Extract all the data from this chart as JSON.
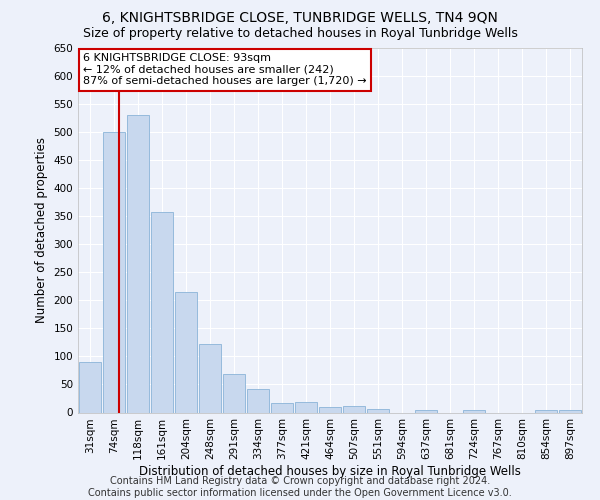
{
  "title": "6, KNIGHTSBRIDGE CLOSE, TUNBRIDGE WELLS, TN4 9QN",
  "subtitle": "Size of property relative to detached houses in Royal Tunbridge Wells",
  "xlabel": "Distribution of detached houses by size in Royal Tunbridge Wells",
  "ylabel": "Number of detached properties",
  "footer_line1": "Contains HM Land Registry data © Crown copyright and database right 2024.",
  "footer_line2": "Contains public sector information licensed under the Open Government Licence v3.0.",
  "bin_labels": [
    "31sqm",
    "74sqm",
    "118sqm",
    "161sqm",
    "204sqm",
    "248sqm",
    "291sqm",
    "334sqm",
    "377sqm",
    "421sqm",
    "464sqm",
    "507sqm",
    "551sqm",
    "594sqm",
    "637sqm",
    "681sqm",
    "724sqm",
    "767sqm",
    "810sqm",
    "854sqm",
    "897sqm"
  ],
  "bar_values": [
    90,
    500,
    530,
    357,
    215,
    122,
    68,
    42,
    17,
    18,
    10,
    11,
    7,
    0,
    5,
    0,
    5,
    0,
    0,
    5,
    5
  ],
  "bar_color": "#c8d8ee",
  "bar_edgecolor": "#8ab4d8",
  "bg_color": "#edf1fa",
  "grid_color": "#ffffff",
  "annotation_text": "6 KNIGHTSBRIDGE CLOSE: 93sqm\n← 12% of detached houses are smaller (242)\n87% of semi-detached houses are larger (1,720) →",
  "annotation_box_color": "#cc0000",
  "vline_x": 1.19,
  "vline_color": "#cc0000",
  "ylim": [
    0,
    650
  ],
  "yticks": [
    0,
    50,
    100,
    150,
    200,
    250,
    300,
    350,
    400,
    450,
    500,
    550,
    600,
    650
  ],
  "title_fontsize": 10,
  "subtitle_fontsize": 9,
  "xlabel_fontsize": 8.5,
  "ylabel_fontsize": 8.5,
  "tick_fontsize": 7.5,
  "footer_fontsize": 7
}
